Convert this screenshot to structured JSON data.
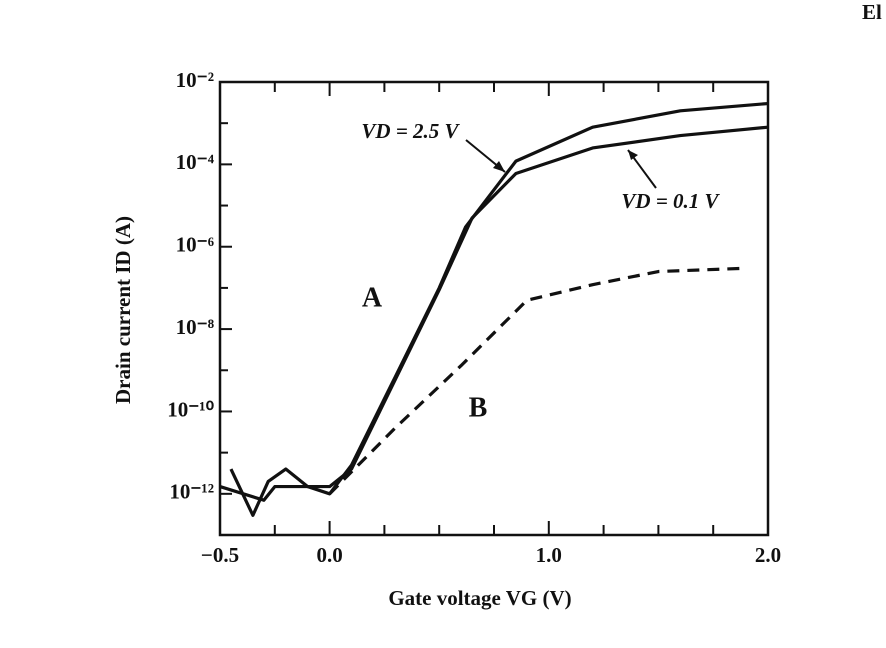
{
  "chart_data": {
    "type": "line",
    "corner_text": "El",
    "xlabel": "Gate voltage VG (V)",
    "ylabel": "Drain current ID (A)",
    "log_y": true,
    "xlim": [
      -0.5,
      2.0
    ],
    "xticks": [
      {
        "value": -0.5,
        "label": "−0.5"
      },
      {
        "value": 0.0,
        "label": "0.0"
      },
      {
        "value": 1.0,
        "label": "1.0"
      },
      {
        "value": 2.0,
        "label": "2.0"
      }
    ],
    "xminorticks": [
      -0.25,
      0.25,
      0.5,
      0.75,
      1.25,
      1.5,
      1.75
    ],
    "ylim": [
      1e-13,
      0.01
    ],
    "yticks": [
      {
        "value": 0.01,
        "label": "10⁻²"
      },
      {
        "value": 0.0001,
        "label": "10⁻⁴"
      },
      {
        "value": 1e-06,
        "label": "10⁻⁶"
      },
      {
        "value": 1e-08,
        "label": "10⁻⁸"
      },
      {
        "value": 1e-10,
        "label": "10⁻¹⁰"
      },
      {
        "value": 1e-12,
        "label": "10⁻¹²"
      }
    ],
    "yminorticks": [
      0.001,
      1e-05,
      1e-07,
      1e-09,
      1e-11,
      1e-13
    ],
    "series": [
      {
        "name": "VD = 2.5 V",
        "color": "#111111",
        "dashed": false,
        "x": [
          -0.45,
          -0.35,
          -0.28,
          -0.2,
          -0.1,
          0.0,
          0.1,
          0.3,
          0.5,
          0.62,
          0.85,
          1.2,
          1.6,
          2.0
        ],
        "values": [
          4e-12,
          3e-13,
          2e-12,
          4e-12,
          1.5e-12,
          1e-12,
          5e-12,
          7e-10,
          1e-07,
          3e-06,
          0.00012,
          0.0008,
          0.002,
          0.003
        ]
      },
      {
        "name": "VD = 0.1 V",
        "color": "#111111",
        "dashed": false,
        "x": [
          -0.5,
          -0.3,
          -0.25,
          -0.1,
          0.0,
          0.1,
          0.3,
          0.5,
          0.65,
          0.85,
          1.2,
          1.6,
          2.0
        ],
        "values": [
          1.5e-12,
          7e-13,
          1.5e-12,
          1.5e-12,
          1.5e-12,
          4e-12,
          6e-10,
          9e-08,
          5e-06,
          6e-05,
          0.00025,
          0.0005,
          0.0008
        ]
      },
      {
        "name": "B",
        "color": "#111111",
        "dashed": true,
        "x": [
          0.0,
          0.3,
          0.6,
          0.9,
          1.2,
          1.5,
          1.9
        ],
        "values": [
          1e-12,
          4e-11,
          1.3e-09,
          5e-08,
          1.2e-07,
          2.5e-07,
          3e-07
        ]
      }
    ],
    "annotations": [
      "A"
    ]
  }
}
